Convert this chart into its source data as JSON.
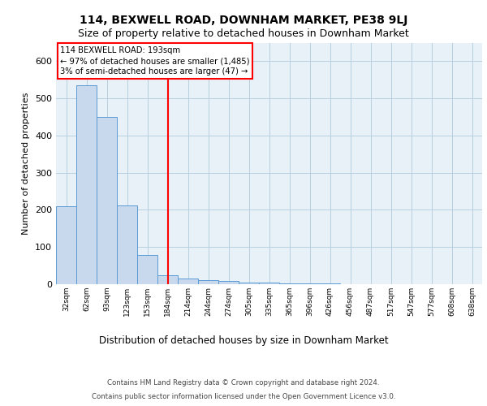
{
  "title": "114, BEXWELL ROAD, DOWNHAM MARKET, PE38 9LJ",
  "subtitle": "Size of property relative to detached houses in Downham Market",
  "xlabel": "Distribution of detached houses by size in Downham Market",
  "ylabel": "Number of detached properties",
  "bar_labels": [
    "32sqm",
    "62sqm",
    "93sqm",
    "123sqm",
    "153sqm",
    "184sqm",
    "214sqm",
    "244sqm",
    "274sqm",
    "305sqm",
    "335sqm",
    "365sqm",
    "396sqm",
    "426sqm",
    "456sqm",
    "487sqm",
    "517sqm",
    "547sqm",
    "577sqm",
    "608sqm",
    "638sqm"
  ],
  "bar_heights": [
    210,
    535,
    450,
    213,
    78,
    25,
    15,
    10,
    8,
    5,
    4,
    3,
    2,
    2,
    1,
    1,
    1,
    1,
    1,
    1,
    1
  ],
  "bar_color": "#c8d9ed",
  "bar_edge_color": "#5b9bd5",
  "bar_width": 1.0,
  "red_line_x": 5.5,
  "annotation_line1": "114 BEXWELL ROAD: 193sqm",
  "annotation_line2": "← 97% of detached houses are smaller (1,485)",
  "annotation_line3": "3% of semi-detached houses are larger (47) →",
  "annotation_box_color": "white",
  "annotation_box_edge": "red",
  "ylim": [
    0,
    650
  ],
  "grid_color": "#b8cfe0",
  "background_color": "#e8f0f8",
  "footer_line1": "Contains HM Land Registry data © Crown copyright and database right 2024.",
  "footer_line2": "Contains public sector information licensed under the Open Government Licence v3.0.",
  "title_fontsize": 10,
  "subtitle_fontsize": 9
}
